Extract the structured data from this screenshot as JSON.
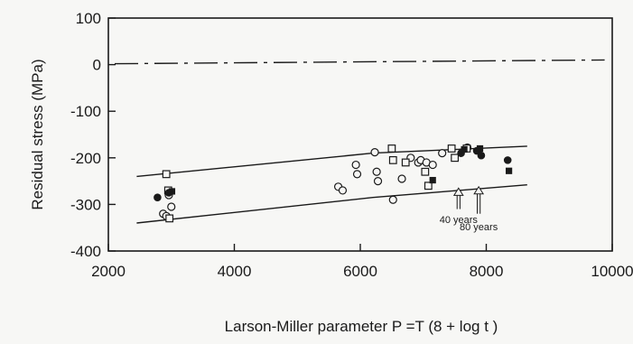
{
  "chart_data": {
    "type": "scatter",
    "xlabel": "Larson-Miller parameter P =T (8 + log t )",
    "ylabel": "Residual stress (MPa)",
    "xlim": [
      2000,
      10000
    ],
    "ylim": [
      -400,
      100
    ],
    "x_ticks": [
      2000,
      4000,
      6000,
      8000,
      10000
    ],
    "y_ticks": [
      100,
      0,
      -100,
      -200,
      -300,
      -400
    ],
    "grid": false,
    "legend": "none",
    "series": [
      {
        "marker": "open-circle",
        "points": [
          [
            2870,
            -320
          ],
          [
            2920,
            -325
          ],
          [
            3000,
            -305
          ],
          [
            2960,
            -280
          ],
          [
            5650,
            -262
          ],
          [
            5720,
            -270
          ],
          [
            5930,
            -215
          ],
          [
            5950,
            -235
          ],
          [
            6230,
            -188
          ],
          [
            6260,
            -230
          ],
          [
            6280,
            -250
          ],
          [
            6520,
            -290
          ],
          [
            6660,
            -245
          ],
          [
            6800,
            -200
          ],
          [
            6920,
            -210
          ],
          [
            6960,
            -205
          ],
          [
            7050,
            -210
          ],
          [
            7150,
            -215
          ],
          [
            7300,
            -190
          ],
          [
            7700,
            -178
          ]
        ]
      },
      {
        "marker": "open-square",
        "points": [
          [
            2920,
            -235
          ],
          [
            2950,
            -270
          ],
          [
            2970,
            -330
          ],
          [
            6500,
            -180
          ],
          [
            6520,
            -205
          ],
          [
            6720,
            -210
          ],
          [
            7030,
            -230
          ],
          [
            7080,
            -260
          ],
          [
            7450,
            -180
          ],
          [
            7500,
            -200
          ],
          [
            7690,
            -180
          ]
        ]
      },
      {
        "marker": "filled-circle",
        "points": [
          [
            2780,
            -285
          ],
          [
            2960,
            -275
          ],
          [
            7600,
            -190
          ],
          [
            7850,
            -185
          ],
          [
            7920,
            -195
          ],
          [
            8340,
            -205
          ]
        ]
      },
      {
        "marker": "filled-square",
        "points": [
          [
            3010,
            -272
          ],
          [
            7150,
            -248
          ],
          [
            7650,
            -182
          ],
          [
            7900,
            -180
          ],
          [
            8360,
            -228
          ]
        ]
      }
    ],
    "reference_lines": [
      {
        "name": "zero-line",
        "style": "dash-dot",
        "points": [
          [
            2100,
            2
          ],
          [
            9880,
            10
          ]
        ]
      },
      {
        "name": "upper-bound",
        "style": "solid",
        "points": [
          [
            2450,
            -240
          ],
          [
            6200,
            -190
          ],
          [
            8650,
            -175
          ]
        ]
      },
      {
        "name": "lower-bound",
        "style": "solid",
        "points": [
          [
            2450,
            -340
          ],
          [
            6200,
            -285
          ],
          [
            8650,
            -258
          ]
        ]
      }
    ],
    "annotations": [
      {
        "text": "40 years",
        "x": 7560,
        "y": -340,
        "arrow_x": 7560,
        "arrow_from_y": -310,
        "arrow_to_y": -265
      },
      {
        "text": "80 years",
        "x": 7880,
        "y": -355,
        "arrow_x": 7880,
        "arrow_from_y": -320,
        "arrow_to_y": -262
      }
    ]
  }
}
